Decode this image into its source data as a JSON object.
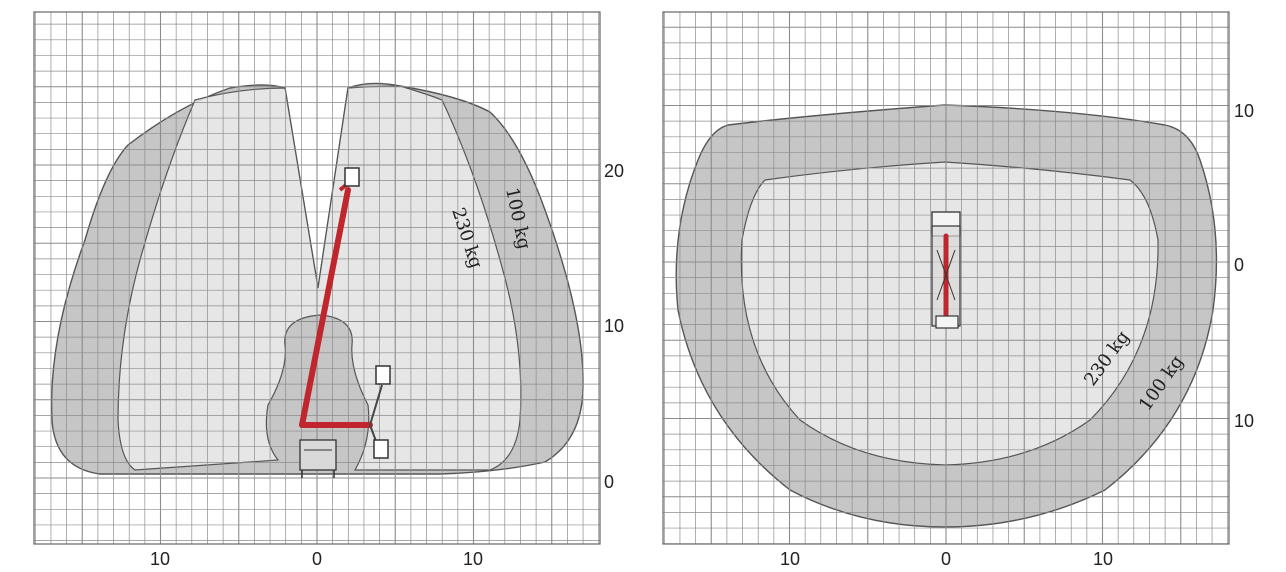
{
  "colors": {
    "grid": "#8c8c8c",
    "outer_zone": "#b9b9b9",
    "inner_zone": "#ebebeb",
    "outline": "#555555",
    "boom": "#c0262d"
  },
  "side_view": {
    "x_ticks": [
      "10",
      "0",
      "10"
    ],
    "y_ticks": [
      "20",
      "10",
      "0"
    ],
    "labels": {
      "outer": "100 kg",
      "inner": "230 kg"
    }
  },
  "top_view": {
    "x_ticks": [
      "10",
      "0",
      "10"
    ],
    "y_ticks": [
      "10",
      "0",
      "10"
    ],
    "labels": {
      "outer": "100 kg",
      "inner": "230 kg"
    }
  }
}
